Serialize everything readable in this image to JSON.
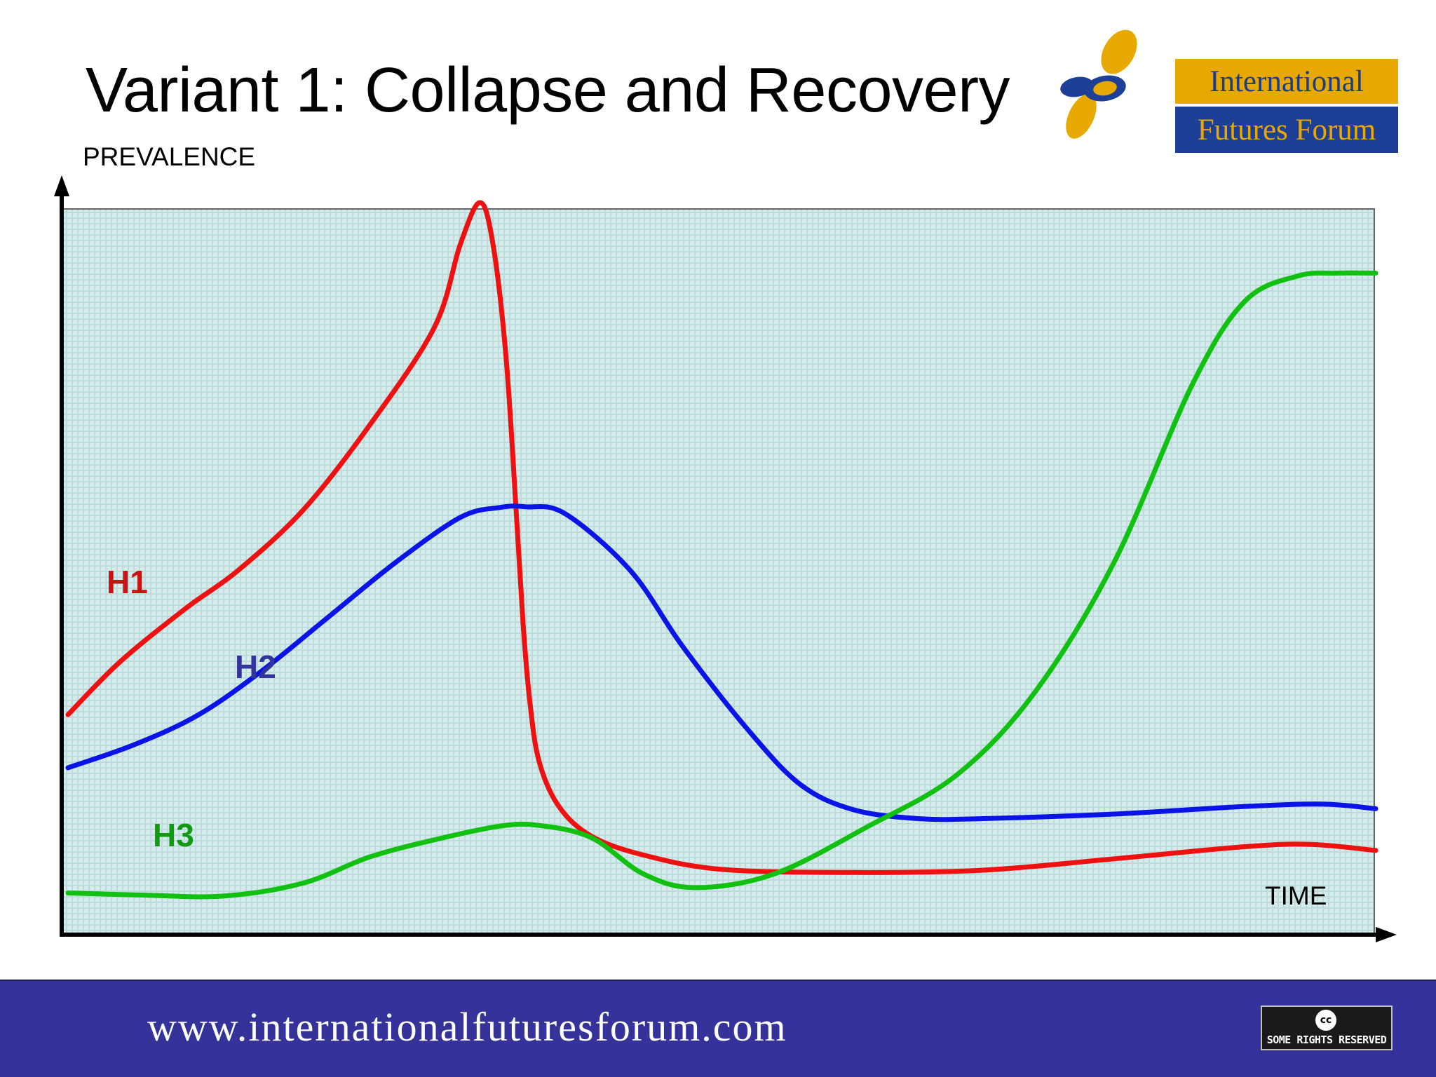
{
  "slide": {
    "title": "Variant 1: Collapse and Recovery"
  },
  "logo": {
    "icon": "butterfly-logo-icon",
    "line1": "International",
    "line2": "Futures Forum",
    "colors": {
      "gold": "#e7a800",
      "blue": "#1d3f95"
    }
  },
  "footer": {
    "url": "www.internationalfuturesforum.com",
    "badge_label": "SOME RIGHTS RESERVED",
    "badge_icon_text": "cc",
    "background": "#353399"
  },
  "chart_data": {
    "type": "line",
    "ylabel": "PREVALENCE",
    "xlabel": "TIME",
    "xlim": [
      0,
      100
    ],
    "ylim": [
      0,
      100
    ],
    "grid": true,
    "legend": "inline labels",
    "background": "#d6ecec",
    "series": [
      {
        "name": "H1",
        "color": "#ee1111",
        "x": [
          0,
          4,
          9,
          13,
          18,
          23,
          28,
          30,
          31.5,
          32.5,
          33.5,
          34.3,
          34.8,
          35.3,
          36,
          37.5,
          40,
          44,
          50,
          60,
          70,
          80,
          90,
          95,
          100
        ],
        "y": [
          29,
          36,
          43,
          48,
          56,
          67,
          80,
          91,
          96.5,
          91,
          76,
          55,
          41,
          31,
          23,
          17,
          13,
          10.5,
          8.6,
          8.2,
          8.5,
          10,
          11.6,
          11.9,
          11.1
        ]
      },
      {
        "name": "H2",
        "color": "#0a14e6",
        "x": [
          0,
          5,
          10,
          15,
          20,
          25,
          30,
          33,
          35,
          38,
          43,
          47,
          52,
          56,
          60,
          65,
          70,
          80,
          90,
          96,
          100
        ],
        "y": [
          22,
          25,
          29,
          35,
          42,
          49,
          55,
          56.3,
          56.4,
          55.5,
          48,
          38,
          27,
          19.8,
          16.5,
          15.3,
          15.3,
          15.9,
          16.9,
          17.2,
          16.6
        ]
      },
      {
        "name": "H3",
        "color": "#11c011",
        "x": [
          0,
          6,
          12,
          18,
          23,
          28,
          33,
          36,
          40,
          44,
          48,
          54,
          61,
          68,
          74,
          80,
          86,
          90,
          94,
          97,
          100
        ],
        "y": [
          5.5,
          5.2,
          5.1,
          6.8,
          10.2,
          12.5,
          14.3,
          14.4,
          12.8,
          8,
          6.2,
          8,
          14.1,
          21.1,
          32.1,
          49.1,
          72.6,
          83.5,
          86.8,
          87.2,
          87.2
        ]
      }
    ],
    "series_label_colors": {
      "H1": "#cc1111",
      "H2": "#333399",
      "H3": "#119911"
    }
  }
}
